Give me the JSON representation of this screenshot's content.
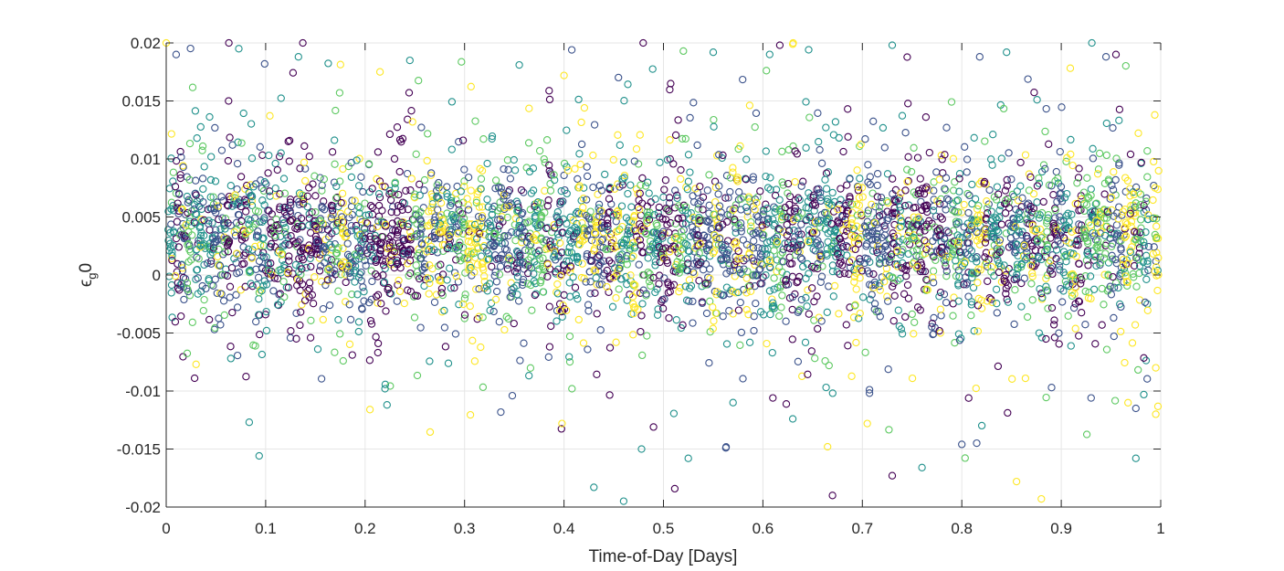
{
  "chart_data": {
    "type": "scatter",
    "title": "",
    "xlabel": "Time-of-Day [Days]",
    "ylabel_main": "ϵ",
    "ylabel_sub": "g",
    "ylabel_tail": "0",
    "xlim": [
      0,
      1
    ],
    "ylim": [
      -0.02,
      0.02
    ],
    "grid": true,
    "marker": "open-circle",
    "colormap": "viridis",
    "x_ticks": [
      {
        "value": 0,
        "label": "0"
      },
      {
        "value": 0.1,
        "label": "0.1"
      },
      {
        "value": 0.2,
        "label": "0.2"
      },
      {
        "value": 0.3,
        "label": "0.3"
      },
      {
        "value": 0.4,
        "label": "0.4"
      },
      {
        "value": 0.5,
        "label": "0.5"
      },
      {
        "value": 0.6,
        "label": "0.6"
      },
      {
        "value": 0.7,
        "label": "0.7"
      },
      {
        "value": 0.8,
        "label": "0.8"
      },
      {
        "value": 0.9,
        "label": "0.9"
      },
      {
        "value": 1,
        "label": "1"
      }
    ],
    "y_ticks": [
      {
        "value": -0.02,
        "label": "-0.02"
      },
      {
        "value": -0.015,
        "label": "-0.015"
      },
      {
        "value": -0.01,
        "label": "-0.01"
      },
      {
        "value": -0.005,
        "label": "-0.005"
      },
      {
        "value": 0,
        "label": "0"
      },
      {
        "value": 0.005,
        "label": "0.005"
      },
      {
        "value": 0.01,
        "label": "0.01"
      },
      {
        "value": 0.015,
        "label": "0.015"
      },
      {
        "value": 0.02,
        "label": "0.02"
      }
    ],
    "colors": [
      "#440154",
      "#3b528b",
      "#21918c",
      "#5ec962",
      "#fde725"
    ],
    "clusters_x": [
      0.005,
      0.012,
      0.018,
      0.024,
      0.031,
      0.037,
      0.044,
      0.05,
      0.057,
      0.064,
      0.071,
      0.078,
      0.085,
      0.092,
      0.098,
      0.105,
      0.112,
      0.118,
      0.125,
      0.132,
      0.138,
      0.145,
      0.152,
      0.158,
      0.165,
      0.172,
      0.178,
      0.185,
      0.192,
      0.198,
      0.205,
      0.212,
      0.218,
      0.225,
      0.232,
      0.238,
      0.245,
      0.252,
      0.258,
      0.265,
      0.272,
      0.278,
      0.285,
      0.292,
      0.298,
      0.305,
      0.312,
      0.318,
      0.325,
      0.332,
      0.338,
      0.345,
      0.352,
      0.358,
      0.365,
      0.372,
      0.378,
      0.385,
      0.392,
      0.398,
      0.405,
      0.412,
      0.418,
      0.425,
      0.432,
      0.438,
      0.445,
      0.452,
      0.458,
      0.465,
      0.472,
      0.478,
      0.485,
      0.492,
      0.498,
      0.505,
      0.512,
      0.518,
      0.525,
      0.532,
      0.538,
      0.545,
      0.552,
      0.558,
      0.565,
      0.572,
      0.578,
      0.585,
      0.592,
      0.598,
      0.605,
      0.612,
      0.618,
      0.625,
      0.632,
      0.638,
      0.645,
      0.652,
      0.658,
      0.665,
      0.672,
      0.678,
      0.685,
      0.692,
      0.698,
      0.705,
      0.712,
      0.718,
      0.725,
      0.732,
      0.738,
      0.745,
      0.752,
      0.758,
      0.765,
      0.772,
      0.778,
      0.785,
      0.792,
      0.798,
      0.805,
      0.812,
      0.818,
      0.825,
      0.832,
      0.838,
      0.845,
      0.852,
      0.858,
      0.865,
      0.872,
      0.878,
      0.885,
      0.892,
      0.898,
      0.905,
      0.912,
      0.918,
      0.925,
      0.932,
      0.938,
      0.945,
      0.952,
      0.958,
      0.965,
      0.972,
      0.978,
      0.985,
      0.995
    ],
    "cluster_center_y": 0.003,
    "cluster_sd_y": 0.004,
    "points_per_cluster": 28,
    "outliers": [
      {
        "x": 0.01,
        "y": 0.019,
        "c": 1
      },
      {
        "x": 0.073,
        "y": 0.0195,
        "c": 2
      },
      {
        "x": 0.099,
        "y": 0.0182,
        "c": 1
      },
      {
        "x": 0.133,
        "y": 0.0188,
        "c": 2
      },
      {
        "x": 0.0,
        "y": 0.02,
        "c": 4
      },
      {
        "x": 0.215,
        "y": 0.0175,
        "c": 4
      },
      {
        "x": 0.245,
        "y": 0.0185,
        "c": 2
      },
      {
        "x": 0.355,
        "y": 0.0181,
        "c": 2
      },
      {
        "x": 0.4,
        "y": 0.0172,
        "c": 4
      },
      {
        "x": 0.52,
        "y": 0.0193,
        "c": 3
      },
      {
        "x": 0.55,
        "y": 0.0192,
        "c": 2
      },
      {
        "x": 0.617,
        "y": 0.0198,
        "c": 0
      },
      {
        "x": 0.63,
        "y": 0.0199,
        "c": 4
      },
      {
        "x": 0.73,
        "y": 0.0198,
        "c": 2
      },
      {
        "x": 0.818,
        "y": 0.0188,
        "c": 1
      },
      {
        "x": 0.845,
        "y": 0.0192,
        "c": 2
      },
      {
        "x": 0.945,
        "y": 0.0188,
        "c": 1
      },
      {
        "x": 0.955,
        "y": 0.019,
        "c": 0
      },
      {
        "x": 0.222,
        "y": -0.0112,
        "c": 2
      },
      {
        "x": 0.22,
        "y": -0.0098,
        "c": 2
      },
      {
        "x": 0.348,
        "y": -0.0104,
        "c": 1
      },
      {
        "x": 0.398,
        "y": -0.0128,
        "c": 4
      },
      {
        "x": 0.43,
        "y": -0.0183,
        "c": 2
      },
      {
        "x": 0.46,
        "y": -0.0195,
        "c": 2
      },
      {
        "x": 0.478,
        "y": -0.015,
        "c": 2
      },
      {
        "x": 0.49,
        "y": -0.0131,
        "c": 0
      },
      {
        "x": 0.525,
        "y": -0.0158,
        "c": 2
      },
      {
        "x": 0.57,
        "y": -0.011,
        "c": 2
      },
      {
        "x": 0.61,
        "y": -0.0106,
        "c": 0
      },
      {
        "x": 0.63,
        "y": -0.0124,
        "c": 2
      },
      {
        "x": 0.665,
        "y": -0.0148,
        "c": 4
      },
      {
        "x": 0.67,
        "y": -0.019,
        "c": 0
      },
      {
        "x": 0.705,
        "y": -0.0128,
        "c": 4
      },
      {
        "x": 0.73,
        "y": -0.0173,
        "c": 0
      },
      {
        "x": 0.76,
        "y": -0.0166,
        "c": 2
      },
      {
        "x": 0.8,
        "y": -0.0146,
        "c": 1
      },
      {
        "x": 0.815,
        "y": -0.0145,
        "c": 1
      },
      {
        "x": 0.855,
        "y": -0.0178,
        "c": 4
      },
      {
        "x": 0.88,
        "y": -0.0193,
        "c": 4
      },
      {
        "x": 0.93,
        "y": -0.0106,
        "c": 1
      },
      {
        "x": 0.975,
        "y": -0.0158,
        "c": 2
      },
      {
        "x": 0.975,
        "y": -0.0115,
        "c": 1
      },
      {
        "x": 0.995,
        "y": -0.012,
        "c": 4
      },
      {
        "x": 0.995,
        "y": -0.008,
        "c": 4
      },
      {
        "x": 0.03,
        "y": -0.0077,
        "c": 4
      },
      {
        "x": 0.065,
        "y": -0.0072,
        "c": 2
      },
      {
        "x": 0.178,
        "y": -0.0074,
        "c": 3
      },
      {
        "x": 0.408,
        "y": -0.0098,
        "c": 3
      }
    ]
  }
}
